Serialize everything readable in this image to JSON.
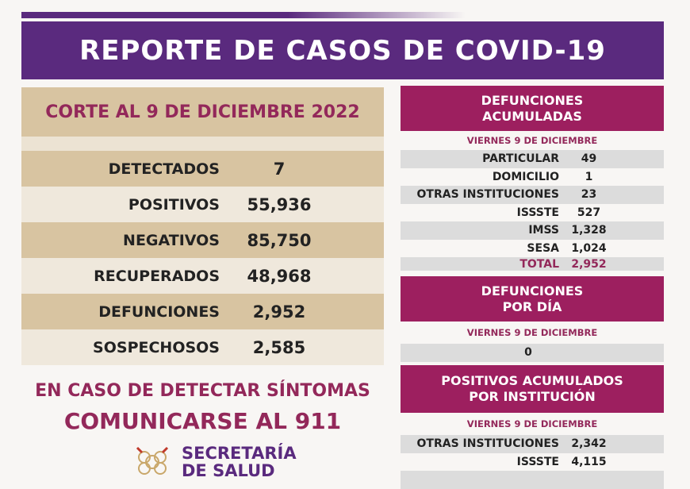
{
  "title": "REPORTE DE CASOS DE COVID-19",
  "corte": "CORTE AL 9 DE DICIEMBRE 2022",
  "summary": [
    {
      "label": "DETECTADOS",
      "value": "7"
    },
    {
      "label": "POSITIVOS",
      "value": "55,936"
    },
    {
      "label": "NEGATIVOS",
      "value": "85,750"
    },
    {
      "label": "RECUPERADOS",
      "value": "48,968"
    },
    {
      "label": "DEFUNCIONES",
      "value": "2,952"
    },
    {
      "label": "SOSPECHOSOS",
      "value": "2,585"
    }
  ],
  "cta": {
    "line1": "EN CASO DE DETECTAR SÍNTOMAS",
    "line2": "COMUNICARSE AL 911"
  },
  "logo": {
    "line1": "SECRETARÍA",
    "line2": "DE SALUD"
  },
  "defunciones_acumuladas": {
    "title1": "DEFUNCIONES",
    "title2": "ACUMULADAS",
    "date": "VIERNES 9 DE DICIEMBRE",
    "rows": [
      {
        "label": "PARTICULAR",
        "value": "49"
      },
      {
        "label": "DOMICILIO",
        "value": "1"
      },
      {
        "label": "OTRAS INSTITUCIONES",
        "value": "23"
      },
      {
        "label": "ISSSTE",
        "value": "527"
      },
      {
        "label": "IMSS",
        "value": "1,328"
      },
      {
        "label": "SESA",
        "value": "1,024"
      },
      {
        "label": "TOTAL",
        "value": "2,952"
      }
    ]
  },
  "defunciones_dia": {
    "title1": "DEFUNCIONES",
    "title2": "POR DÍA",
    "date": "VIERNES 9 DE DICIEMBRE",
    "value": "0"
  },
  "positivos_institucion": {
    "title1": "POSITIVOS ACUMULADOS",
    "title2": "POR INSTITUCIÓN",
    "date": "VIERNES 9 DE DICIEMBRE",
    "rows": [
      {
        "label": "OTRAS INSTITUCIONES",
        "value": "2,342"
      },
      {
        "label": "ISSSTE",
        "value": "4,115"
      }
    ]
  },
  "colors": {
    "purple": "#5a2a7e",
    "magenta": "#9d1f5f",
    "tan": "#d8c4a1"
  }
}
